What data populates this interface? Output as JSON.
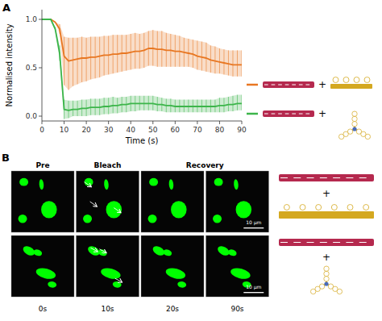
{
  "chart_data": {
    "type": "line",
    "xlabel": "Time (s)",
    "ylabel": "Normalised intensity",
    "xlim": [
      0,
      90
    ],
    "ylim": [
      -0.05,
      1.1
    ],
    "xticks": [
      0,
      10,
      20,
      30,
      40,
      50,
      60,
      70,
      80,
      90
    ],
    "yticks": [
      {
        "value": 0.0,
        "label": "0.0"
      },
      0.5,
      {
        "value": 1.0,
        "label": "1.0"
      }
    ],
    "x": [
      0,
      2,
      4,
      6,
      8,
      10,
      12,
      14,
      16,
      18,
      20,
      22,
      24,
      26,
      28,
      30,
      32,
      34,
      36,
      38,
      40,
      42,
      44,
      46,
      48,
      50,
      52,
      54,
      56,
      58,
      60,
      62,
      64,
      66,
      68,
      70,
      72,
      74,
      76,
      78,
      80,
      82,
      84,
      86,
      88,
      90
    ],
    "series": [
      {
        "color": "#E87722",
        "values": [
          1.0,
          1.0,
          1.0,
          0.97,
          0.9,
          0.62,
          0.57,
          0.58,
          0.59,
          0.6,
          0.6,
          0.61,
          0.61,
          0.62,
          0.63,
          0.63,
          0.64,
          0.64,
          0.65,
          0.65,
          0.66,
          0.67,
          0.67,
          0.68,
          0.7,
          0.7,
          0.69,
          0.69,
          0.68,
          0.68,
          0.67,
          0.67,
          0.66,
          0.65,
          0.64,
          0.62,
          0.61,
          0.6,
          0.58,
          0.57,
          0.56,
          0.55,
          0.54,
          0.53,
          0.53,
          0.53
        ],
        "error_upper": [
          0.0,
          0.0,
          0.0,
          0.0,
          0.05,
          0.2,
          0.24,
          0.23,
          0.22,
          0.22,
          0.21,
          0.21,
          0.21,
          0.2,
          0.2,
          0.2,
          0.2,
          0.2,
          0.19,
          0.19,
          0.19,
          0.19,
          0.18,
          0.18,
          0.18,
          0.19,
          0.19,
          0.19,
          0.18,
          0.17,
          0.17,
          0.16,
          0.15,
          0.15,
          0.15,
          0.16,
          0.16,
          0.16,
          0.15,
          0.15,
          0.14,
          0.14,
          0.14,
          0.15,
          0.15,
          0.15
        ],
        "error_lower": [
          0.0,
          0.0,
          0.0,
          0.0,
          0.05,
          0.3,
          0.3,
          0.27,
          0.26,
          0.25,
          0.24,
          0.23,
          0.22,
          0.22,
          0.21,
          0.2,
          0.2,
          0.19,
          0.19,
          0.18,
          0.18,
          0.18,
          0.18,
          0.18,
          0.18,
          0.18,
          0.18,
          0.18,
          0.17,
          0.17,
          0.16,
          0.16,
          0.15,
          0.14,
          0.14,
          0.14,
          0.14,
          0.14,
          0.13,
          0.13,
          0.12,
          0.12,
          0.12,
          0.12,
          0.12,
          0.12
        ]
      },
      {
        "color": "#3CB54A",
        "values": [
          1.0,
          1.0,
          1.0,
          0.9,
          0.65,
          0.07,
          0.06,
          0.07,
          0.07,
          0.08,
          0.08,
          0.09,
          0.09,
          0.09,
          0.1,
          0.1,
          0.11,
          0.11,
          0.12,
          0.12,
          0.13,
          0.13,
          0.13,
          0.13,
          0.13,
          0.13,
          0.12,
          0.12,
          0.11,
          0.11,
          0.1,
          0.1,
          0.1,
          0.1,
          0.1,
          0.1,
          0.1,
          0.1,
          0.1,
          0.1,
          0.11,
          0.11,
          0.12,
          0.12,
          0.13,
          0.13
        ],
        "error_upper": [
          0.0,
          0.0,
          0.0,
          0.02,
          0.08,
          0.1,
          0.1,
          0.09,
          0.09,
          0.09,
          0.09,
          0.09,
          0.09,
          0.09,
          0.09,
          0.09,
          0.09,
          0.08,
          0.08,
          0.08,
          0.08,
          0.08,
          0.08,
          0.08,
          0.08,
          0.08,
          0.08,
          0.07,
          0.07,
          0.07,
          0.07,
          0.07,
          0.07,
          0.07,
          0.07,
          0.07,
          0.07,
          0.07,
          0.07,
          0.07,
          0.08,
          0.08,
          0.08,
          0.09,
          0.09,
          0.09
        ],
        "error_lower": [
          0.0,
          0.0,
          0.0,
          0.02,
          0.08,
          0.1,
          0.08,
          0.07,
          0.07,
          0.08,
          0.08,
          0.08,
          0.08,
          0.08,
          0.08,
          0.08,
          0.08,
          0.08,
          0.08,
          0.08,
          0.08,
          0.08,
          0.07,
          0.07,
          0.07,
          0.07,
          0.07,
          0.07,
          0.07,
          0.07,
          0.06,
          0.06,
          0.06,
          0.06,
          0.06,
          0.06,
          0.06,
          0.06,
          0.06,
          0.06,
          0.07,
          0.07,
          0.07,
          0.07,
          0.07,
          0.07
        ]
      }
    ],
    "annotations": [
      "A",
      "B",
      "Pre",
      "Bleach",
      "Recovery",
      "0s",
      "10s",
      "20s",
      "90s",
      "10 μm",
      "+"
    ]
  }
}
